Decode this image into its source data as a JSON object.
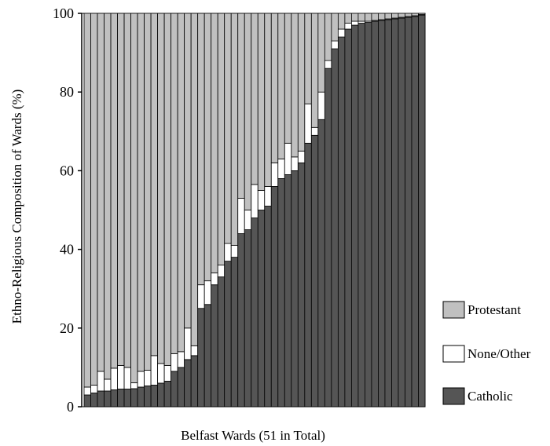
{
  "chart_data": {
    "type": "bar",
    "stacked": true,
    "xlabel": "Belfast Wards (51 in Total)",
    "ylabel": "Ethno-Religious Composition of Wards (%)",
    "ylim": [
      0,
      100
    ],
    "yticks": [
      0,
      20,
      40,
      60,
      80,
      100
    ],
    "legend_position": "right",
    "series": [
      {
        "name": "Catholic",
        "color": "#555555",
        "values": [
          3,
          3.5,
          4,
          4,
          4.3,
          4.5,
          4.5,
          4.6,
          5,
          5.3,
          5.5,
          6,
          6.5,
          9,
          10,
          12,
          13,
          25,
          26,
          31,
          33,
          37,
          38,
          44,
          45,
          48,
          50,
          51,
          56,
          58,
          59,
          60,
          62,
          67,
          69,
          73,
          86,
          91,
          94,
          96,
          97,
          97.5,
          97.7,
          98,
          98.2,
          98.4,
          98.6,
          98.8,
          99,
          99.2,
          99.5
        ]
      },
      {
        "name": "None/Other",
        "color": "#ffffff",
        "values": [
          2,
          2,
          5,
          3,
          5.5,
          6,
          5.5,
          1.5,
          4,
          4,
          7.5,
          5,
          4,
          4.5,
          4,
          8,
          2.5,
          6,
          6,
          3,
          3,
          4.5,
          3,
          9,
          5,
          8.5,
          5,
          5,
          6,
          5,
          8,
          3.5,
          3,
          10,
          2,
          7,
          2,
          2,
          2,
          1.5,
          1,
          0.5,
          0.3,
          0.2,
          0.2,
          0.2,
          0.2,
          0.2,
          0.2,
          0.2,
          0.2
        ]
      },
      {
        "name": "Protestant",
        "color": "#c0c0c0",
        "values": [
          95,
          94.5,
          91,
          93,
          90.2,
          89.5,
          90,
          93.9,
          91,
          90.7,
          87,
          89,
          89.5,
          86.5,
          86,
          80,
          84.5,
          69,
          68,
          66,
          64,
          58.5,
          59,
          47,
          50,
          43.5,
          45,
          44,
          38,
          37,
          33,
          36.5,
          35,
          23,
          29,
          20,
          12,
          7,
          4,
          2.5,
          2,
          2,
          2,
          1.8,
          1.6,
          1.4,
          1.2,
          1,
          0.8,
          0.6,
          0.3
        ]
      }
    ]
  },
  "legend": [
    {
      "label": "Protestant",
      "color": "#c0c0c0"
    },
    {
      "label": "None/Other",
      "color": "#ffffff"
    },
    {
      "label": "Catholic",
      "color": "#555555"
    }
  ]
}
